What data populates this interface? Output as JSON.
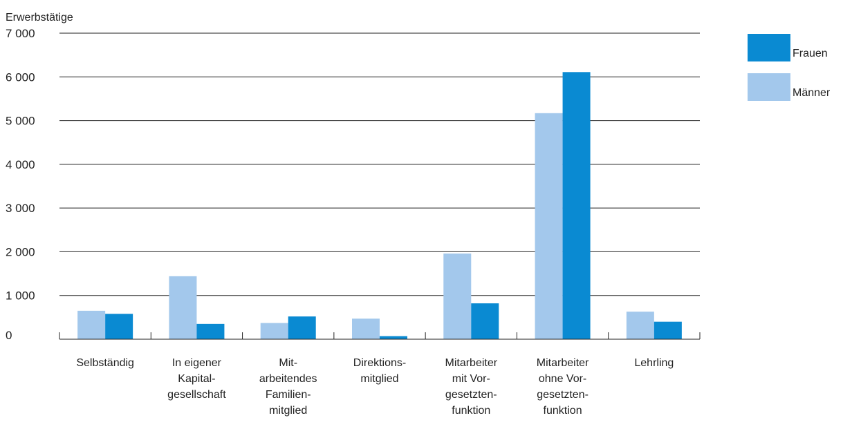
{
  "chart_data": {
    "type": "bar",
    "ylabel": "Erwerbstätige",
    "ylim": [
      0,
      7000
    ],
    "yticks": [
      0,
      1000,
      2000,
      3000,
      4000,
      5000,
      6000,
      7000
    ],
    "ytick_labels": [
      "0",
      "1 000",
      "2 000",
      "3 000",
      "4 000",
      "5 000",
      "6 000",
      "7 000"
    ],
    "grid": true,
    "legend_position": "top-right",
    "categories": [
      [
        "Selbständig"
      ],
      [
        "In eigener",
        "Kapital-",
        "gesellschaft"
      ],
      [
        "Mit-",
        "arbeitendes",
        "Familien-",
        "mitglied"
      ],
      [
        "Direktions-",
        "mitglied"
      ],
      [
        "Mitarbeiter",
        "mit Vor-",
        "gesetzten-",
        "funktion"
      ],
      [
        "Mitarbeiter",
        "ohne Vor-",
        "gesetzten-",
        "funktion"
      ],
      [
        "Lehrling"
      ]
    ],
    "series": [
      {
        "name": "Männer",
        "color": "#a3c8ec",
        "values": [
          650,
          1440,
          370,
          470,
          1960,
          5170,
          630
        ]
      },
      {
        "name": "Frauen",
        "color": "#0a8ad2",
        "values": [
          580,
          350,
          520,
          70,
          820,
          6110,
          400
        ]
      }
    ],
    "legend_order": [
      "Frauen",
      "Männer"
    ],
    "grid_color": "#222222"
  }
}
